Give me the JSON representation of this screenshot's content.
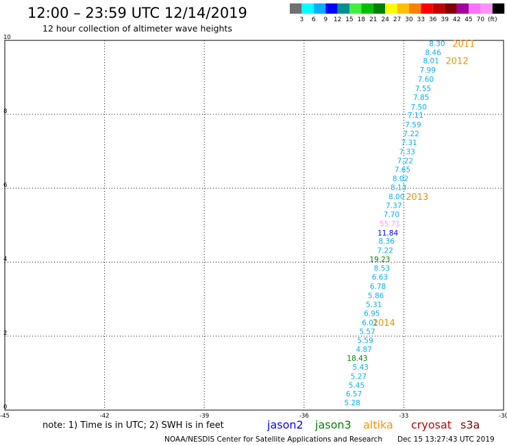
{
  "header": {
    "title": "12:00 – 23:59 UTC 12/14/2019",
    "subtitle": "12 hour collection of altimeter wave heights"
  },
  "color_legend": {
    "colors": [
      "#707070",
      "#00ffff",
      "#00b0ff",
      "#0000ff",
      "#009090",
      "#40f040",
      "#00c000",
      "#008000",
      "#ffff00",
      "#ffc000",
      "#ff8000",
      "#ff0000",
      "#c00000",
      "#800000",
      "#a000a0",
      "#ff70ff",
      "#ff90ff",
      "#000000"
    ],
    "labels": [
      "3",
      "6",
      "9",
      "12",
      "15",
      "18",
      "21",
      "24",
      "27",
      "30",
      "33",
      "36",
      "39",
      "42",
      "45",
      "70",
      "(ft)"
    ]
  },
  "map": {
    "lon_range": [
      -45,
      -30
    ],
    "lat_range": [
      0,
      10
    ],
    "lon_ticks": [
      "-45",
      "-42",
      "-39",
      "-36",
      "-33",
      "-30"
    ],
    "lat_ticks": [
      "0",
      "2",
      "4",
      "6",
      "8",
      "10"
    ],
    "grid": "dotted"
  },
  "observations": [
    {
      "lon": -32.0,
      "lat": 9.92,
      "value": "8.30",
      "color": "#00b0ff"
    },
    {
      "lon": -32.12,
      "lat": 9.68,
      "value": "8.46",
      "color": "#00b0ff"
    },
    {
      "lon": -32.18,
      "lat": 9.45,
      "value": "8.01",
      "color": "#00b0ff"
    },
    {
      "lon": -32.28,
      "lat": 9.2,
      "value": "7.99",
      "color": "#00b0ff"
    },
    {
      "lon": -32.34,
      "lat": 8.95,
      "value": "7.60",
      "color": "#00b0ff"
    },
    {
      "lon": -32.42,
      "lat": 8.7,
      "value": "7.55",
      "color": "#00b0ff"
    },
    {
      "lon": -32.48,
      "lat": 8.46,
      "value": "7.85",
      "color": "#00b0ff"
    },
    {
      "lon": -32.55,
      "lat": 8.2,
      "value": "7.50",
      "color": "#00b0ff"
    },
    {
      "lon": -32.65,
      "lat": 7.98,
      "value": "7.11",
      "color": "#00b0ff"
    },
    {
      "lon": -32.72,
      "lat": 7.72,
      "value": "7.59",
      "color": "#00b0ff"
    },
    {
      "lon": -32.78,
      "lat": 7.48,
      "value": "7.22",
      "color": "#00b0ff"
    },
    {
      "lon": -32.84,
      "lat": 7.24,
      "value": "7.31",
      "color": "#00b0ff"
    },
    {
      "lon": -32.9,
      "lat": 6.99,
      "value": "7.33",
      "color": "#00b0ff"
    },
    {
      "lon": -32.96,
      "lat": 6.75,
      "value": "7.22",
      "color": "#00b0ff"
    },
    {
      "lon": -33.04,
      "lat": 6.51,
      "value": "7.65",
      "color": "#00b0ff"
    },
    {
      "lon": -33.1,
      "lat": 6.27,
      "value": "8.02",
      "color": "#00b0ff"
    },
    {
      "lon": -33.16,
      "lat": 6.03,
      "value": "8.13",
      "color": "#00b0ff"
    },
    {
      "lon": -33.22,
      "lat": 5.78,
      "value": "8.00",
      "color": "#00b0ff"
    },
    {
      "lon": -33.3,
      "lat": 5.54,
      "value": "7.37",
      "color": "#00b0ff"
    },
    {
      "lon": -33.37,
      "lat": 5.3,
      "value": "7.70",
      "color": "#00b0ff"
    },
    {
      "lon": -33.42,
      "lat": 5.05,
      "value": "55.71",
      "color": "#ff90ff"
    },
    {
      "lon": -33.48,
      "lat": 4.8,
      "value": "11.84",
      "color": "#0000ff"
    },
    {
      "lon": -33.52,
      "lat": 4.57,
      "value": "8.36",
      "color": "#00b0ff"
    },
    {
      "lon": -33.56,
      "lat": 4.32,
      "value": "7.22",
      "color": "#00b0ff"
    },
    {
      "lon": -33.72,
      "lat": 4.08,
      "value": "19.23",
      "color": "#008000"
    },
    {
      "lon": -33.66,
      "lat": 3.84,
      "value": "8.53",
      "color": "#00b0ff"
    },
    {
      "lon": -33.72,
      "lat": 3.6,
      "value": "6.63",
      "color": "#00b0ff"
    },
    {
      "lon": -33.78,
      "lat": 3.35,
      "value": "6.78",
      "color": "#00b0ff"
    },
    {
      "lon": -33.84,
      "lat": 3.1,
      "value": "5.86",
      "color": "#00b0ff"
    },
    {
      "lon": -33.9,
      "lat": 2.86,
      "value": "5.31",
      "color": "#00b0ff"
    },
    {
      "lon": -33.96,
      "lat": 2.62,
      "value": "6.95",
      "color": "#00b0ff"
    },
    {
      "lon": -34.02,
      "lat": 2.37,
      "value": "6.01",
      "color": "#00b0ff"
    },
    {
      "lon": -34.1,
      "lat": 2.13,
      "value": "5.57",
      "color": "#00b0ff"
    },
    {
      "lon": -34.16,
      "lat": 1.89,
      "value": "5.59",
      "color": "#00b0ff"
    },
    {
      "lon": -34.2,
      "lat": 1.65,
      "value": "4.87",
      "color": "#00b0ff"
    },
    {
      "lon": -34.4,
      "lat": 1.41,
      "value": "18.43",
      "color": "#008000"
    },
    {
      "lon": -34.3,
      "lat": 1.17,
      "value": "5.43",
      "color": "#00b0ff"
    },
    {
      "lon": -34.36,
      "lat": 0.92,
      "value": "5.27",
      "color": "#00b0ff"
    },
    {
      "lon": -34.42,
      "lat": 0.68,
      "value": "5.45",
      "color": "#00b0ff"
    },
    {
      "lon": -34.5,
      "lat": 0.44,
      "value": "6.57",
      "color": "#00b0ff"
    },
    {
      "lon": -34.55,
      "lat": 0.2,
      "value": "5.28",
      "color": "#00b0ff"
    }
  ],
  "year_labels": [
    {
      "text": "2011",
      "lon": -31.2,
      "lat": 9.92
    },
    {
      "text": "2012",
      "lon": -31.4,
      "lat": 9.45
    },
    {
      "text": "2013",
      "lon": -32.6,
      "lat": 5.78
    },
    {
      "text": "2014",
      "lon": -33.6,
      "lat": 2.37
    }
  ],
  "footer": {
    "note": "note: 1) Time is in UTC; 2) SWH is in feet",
    "satellites": [
      {
        "name": "jason2",
        "color": "#0000ff"
      },
      {
        "name": "jason3",
        "color": "#008000"
      },
      {
        "name": "altika",
        "color": "#ff9000"
      },
      {
        "name": "cryosat",
        "color": "#c00000"
      },
      {
        "name": "s3a",
        "color": "#800000"
      }
    ],
    "credit": "NOAA/NESDIS Center for Satellite Applications and Research",
    "timestamp": "Dec 15 13:27:43 UTC 2019"
  }
}
